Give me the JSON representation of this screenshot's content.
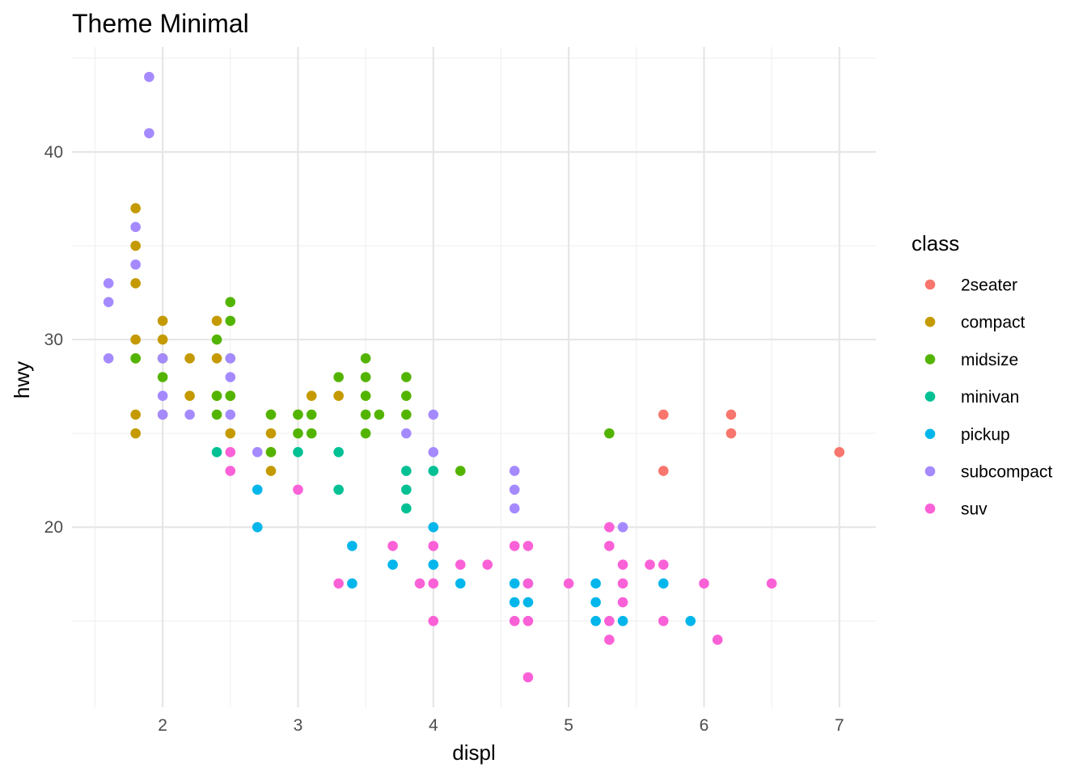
{
  "chart_data": {
    "type": "scatter",
    "title": "Theme Minimal",
    "xlabel": "displ",
    "ylabel": "hwy",
    "xlim": [
      1.33,
      7.27
    ],
    "ylim": [
      10.4,
      45.6
    ],
    "x_ticks": [
      2,
      3,
      4,
      5,
      6,
      7
    ],
    "y_ticks": [
      20,
      30,
      40
    ],
    "grid": true,
    "legend": {
      "title": "class",
      "placement": "right"
    },
    "series": [
      {
        "name": "2seater",
        "color": "#F8766D",
        "points": [
          [
            5.7,
            26
          ],
          [
            5.7,
            23
          ],
          [
            6.2,
            26
          ],
          [
            6.2,
            25
          ],
          [
            7.0,
            24
          ]
        ]
      },
      {
        "name": "compact",
        "color": "#C49A00",
        "points": [
          [
            1.8,
            37
          ],
          [
            1.8,
            35
          ],
          [
            1.8,
            33
          ],
          [
            1.8,
            30
          ],
          [
            1.8,
            29
          ],
          [
            1.8,
            26
          ],
          [
            1.8,
            25
          ],
          [
            2.0,
            31
          ],
          [
            2.0,
            30
          ],
          [
            2.0,
            29
          ],
          [
            2.0,
            26
          ],
          [
            2.2,
            29
          ],
          [
            2.2,
            27
          ],
          [
            2.4,
            31
          ],
          [
            2.4,
            29
          ],
          [
            2.4,
            27
          ],
          [
            2.5,
            27
          ],
          [
            2.5,
            25
          ],
          [
            2.8,
            26
          ],
          [
            2.8,
            25
          ],
          [
            2.8,
            24
          ],
          [
            2.8,
            23
          ],
          [
            3.0,
            26
          ],
          [
            3.1,
            27
          ],
          [
            3.3,
            27
          ]
        ]
      },
      {
        "name": "midsize",
        "color": "#53B400",
        "points": [
          [
            1.8,
            29
          ],
          [
            2.0,
            29
          ],
          [
            2.0,
            28
          ],
          [
            2.4,
            30
          ],
          [
            2.4,
            27
          ],
          [
            2.4,
            26
          ],
          [
            2.5,
            32
          ],
          [
            2.5,
            31
          ],
          [
            2.5,
            29
          ],
          [
            2.5,
            27
          ],
          [
            2.8,
            26
          ],
          [
            2.8,
            24
          ],
          [
            3.0,
            26
          ],
          [
            3.0,
            25
          ],
          [
            3.1,
            26
          ],
          [
            3.1,
            25
          ],
          [
            3.3,
            28
          ],
          [
            3.5,
            29
          ],
          [
            3.5,
            28
          ],
          [
            3.5,
            27
          ],
          [
            3.5,
            26
          ],
          [
            3.5,
            25
          ],
          [
            3.6,
            26
          ],
          [
            3.8,
            28
          ],
          [
            3.8,
            27
          ],
          [
            3.8,
            26
          ],
          [
            4.2,
            23
          ],
          [
            5.3,
            25
          ]
        ]
      },
      {
        "name": "minivan",
        "color": "#00C094",
        "points": [
          [
            2.4,
            24
          ],
          [
            3.0,
            24
          ],
          [
            3.3,
            24
          ],
          [
            3.3,
            22
          ],
          [
            3.8,
            23
          ],
          [
            3.8,
            22
          ],
          [
            3.8,
            21
          ],
          [
            4.0,
            23
          ]
        ]
      },
      {
        "name": "pickup",
        "color": "#00B6EB",
        "points": [
          [
            2.7,
            22
          ],
          [
            2.7,
            20
          ],
          [
            3.4,
            19
          ],
          [
            3.4,
            17
          ],
          [
            3.7,
            18
          ],
          [
            4.0,
            20
          ],
          [
            4.0,
            18
          ],
          [
            4.2,
            17
          ],
          [
            4.6,
            17
          ],
          [
            4.6,
            16
          ],
          [
            4.7,
            17
          ],
          [
            4.7,
            16
          ],
          [
            5.2,
            17
          ],
          [
            5.2,
            16
          ],
          [
            5.2,
            15
          ],
          [
            5.4,
            15
          ],
          [
            5.7,
            17
          ],
          [
            5.9,
            15
          ]
        ]
      },
      {
        "name": "subcompact",
        "color": "#A58AFF",
        "points": [
          [
            1.6,
            33
          ],
          [
            1.6,
            32
          ],
          [
            1.6,
            29
          ],
          [
            1.8,
            36
          ],
          [
            1.8,
            34
          ],
          [
            1.9,
            44
          ],
          [
            1.9,
            41
          ],
          [
            2.0,
            29
          ],
          [
            2.0,
            27
          ],
          [
            2.0,
            26
          ],
          [
            2.2,
            26
          ],
          [
            2.5,
            29
          ],
          [
            2.5,
            28
          ],
          [
            2.5,
            26
          ],
          [
            2.7,
            24
          ],
          [
            3.8,
            25
          ],
          [
            4.0,
            26
          ],
          [
            4.0,
            24
          ],
          [
            4.6,
            23
          ],
          [
            4.6,
            22
          ],
          [
            4.6,
            21
          ],
          [
            5.4,
            20
          ]
        ]
      },
      {
        "name": "suv",
        "color": "#FB61D7",
        "points": [
          [
            2.5,
            24
          ],
          [
            2.5,
            23
          ],
          [
            3.0,
            22
          ],
          [
            3.3,
            17
          ],
          [
            3.7,
            19
          ],
          [
            3.9,
            17
          ],
          [
            4.0,
            19
          ],
          [
            4.0,
            17
          ],
          [
            4.0,
            15
          ],
          [
            4.2,
            18
          ],
          [
            4.4,
            18
          ],
          [
            4.6,
            19
          ],
          [
            4.6,
            15
          ],
          [
            4.7,
            19
          ],
          [
            4.7,
            17
          ],
          [
            4.7,
            15
          ],
          [
            4.7,
            12
          ],
          [
            5.0,
            17
          ],
          [
            5.3,
            20
          ],
          [
            5.3,
            19
          ],
          [
            5.3,
            15
          ],
          [
            5.3,
            14
          ],
          [
            5.4,
            18
          ],
          [
            5.4,
            17
          ],
          [
            5.4,
            16
          ],
          [
            5.6,
            18
          ],
          [
            5.7,
            18
          ],
          [
            5.7,
            15
          ],
          [
            6.0,
            17
          ],
          [
            6.1,
            14
          ],
          [
            6.5,
            17
          ]
        ]
      }
    ]
  }
}
